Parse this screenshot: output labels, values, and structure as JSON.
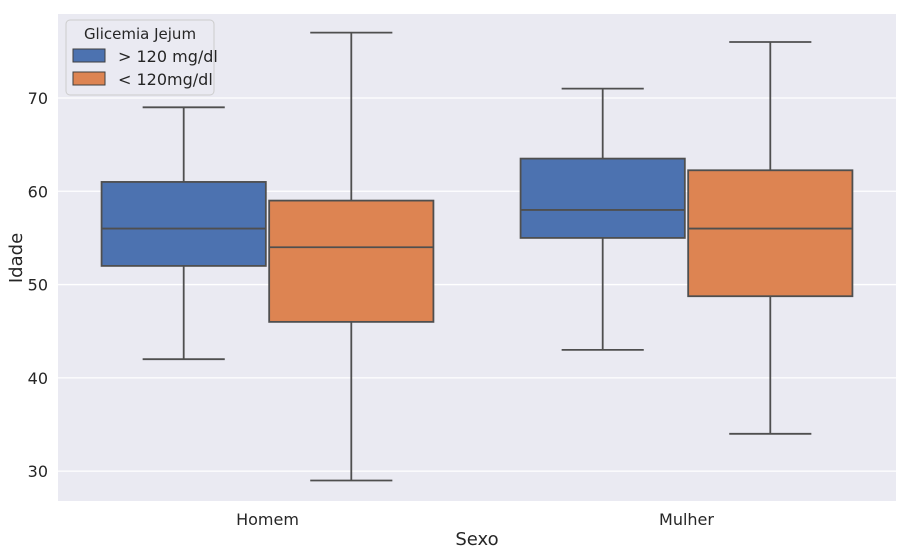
{
  "chart_data": {
    "type": "box",
    "xlabel": "Sexo",
    "ylabel": "Idade",
    "categories": [
      "Homem",
      "Mulher"
    ],
    "ylim": [
      26.8,
      79.0
    ],
    "yticks": [
      30,
      40,
      50,
      60,
      70
    ],
    "grid": true,
    "legend": {
      "title": "Glicemia Jejum",
      "placement": "top-left"
    },
    "series": [
      {
        "name": "> 120 mg/dl",
        "color": "#4c72b0",
        "boxes": [
          {
            "category": "Homem",
            "whislo": 42,
            "q1": 52,
            "median": 56,
            "q3": 61,
            "whishi": 69
          },
          {
            "category": "Mulher",
            "whislo": 43,
            "q1": 55,
            "median": 58,
            "q3": 63.5,
            "whishi": 71
          }
        ]
      },
      {
        "name": "< 120mg/dl",
        "color": "#dd8452",
        "boxes": [
          {
            "category": "Homem",
            "whislo": 29,
            "q1": 46,
            "median": 54,
            "q3": 59,
            "whishi": 77
          },
          {
            "category": "Mulher",
            "whislo": 34,
            "q1": 48.75,
            "median": 56,
            "q3": 62.25,
            "whishi": 76
          }
        ]
      }
    ]
  }
}
